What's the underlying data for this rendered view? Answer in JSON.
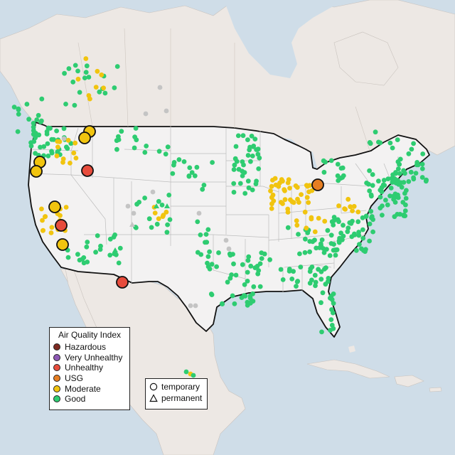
{
  "legend": {
    "title": "Air Quality Index",
    "categories": [
      {
        "label": "Hazardous",
        "color": "#7e2a22"
      },
      {
        "label": "Very Unhealthy",
        "color": "#8e59b5"
      },
      {
        "label": "Unhealthy",
        "color": "#e74c3c"
      },
      {
        "label": "USG",
        "color": "#e67e22"
      },
      {
        "label": "Moderate",
        "color": "#f1c40f"
      },
      {
        "label": "Good",
        "color": "#2ecc71"
      }
    ]
  },
  "monitor_types": {
    "temporary": "temporary",
    "permanent": "permanent"
  },
  "colors": {
    "water": "#cfdde8",
    "land": "#ede8e4",
    "us_land": "#f3f2f2",
    "border": "#111111",
    "state_line": "#bdbdbd",
    "no_data": "#c4c4c4"
  }
}
